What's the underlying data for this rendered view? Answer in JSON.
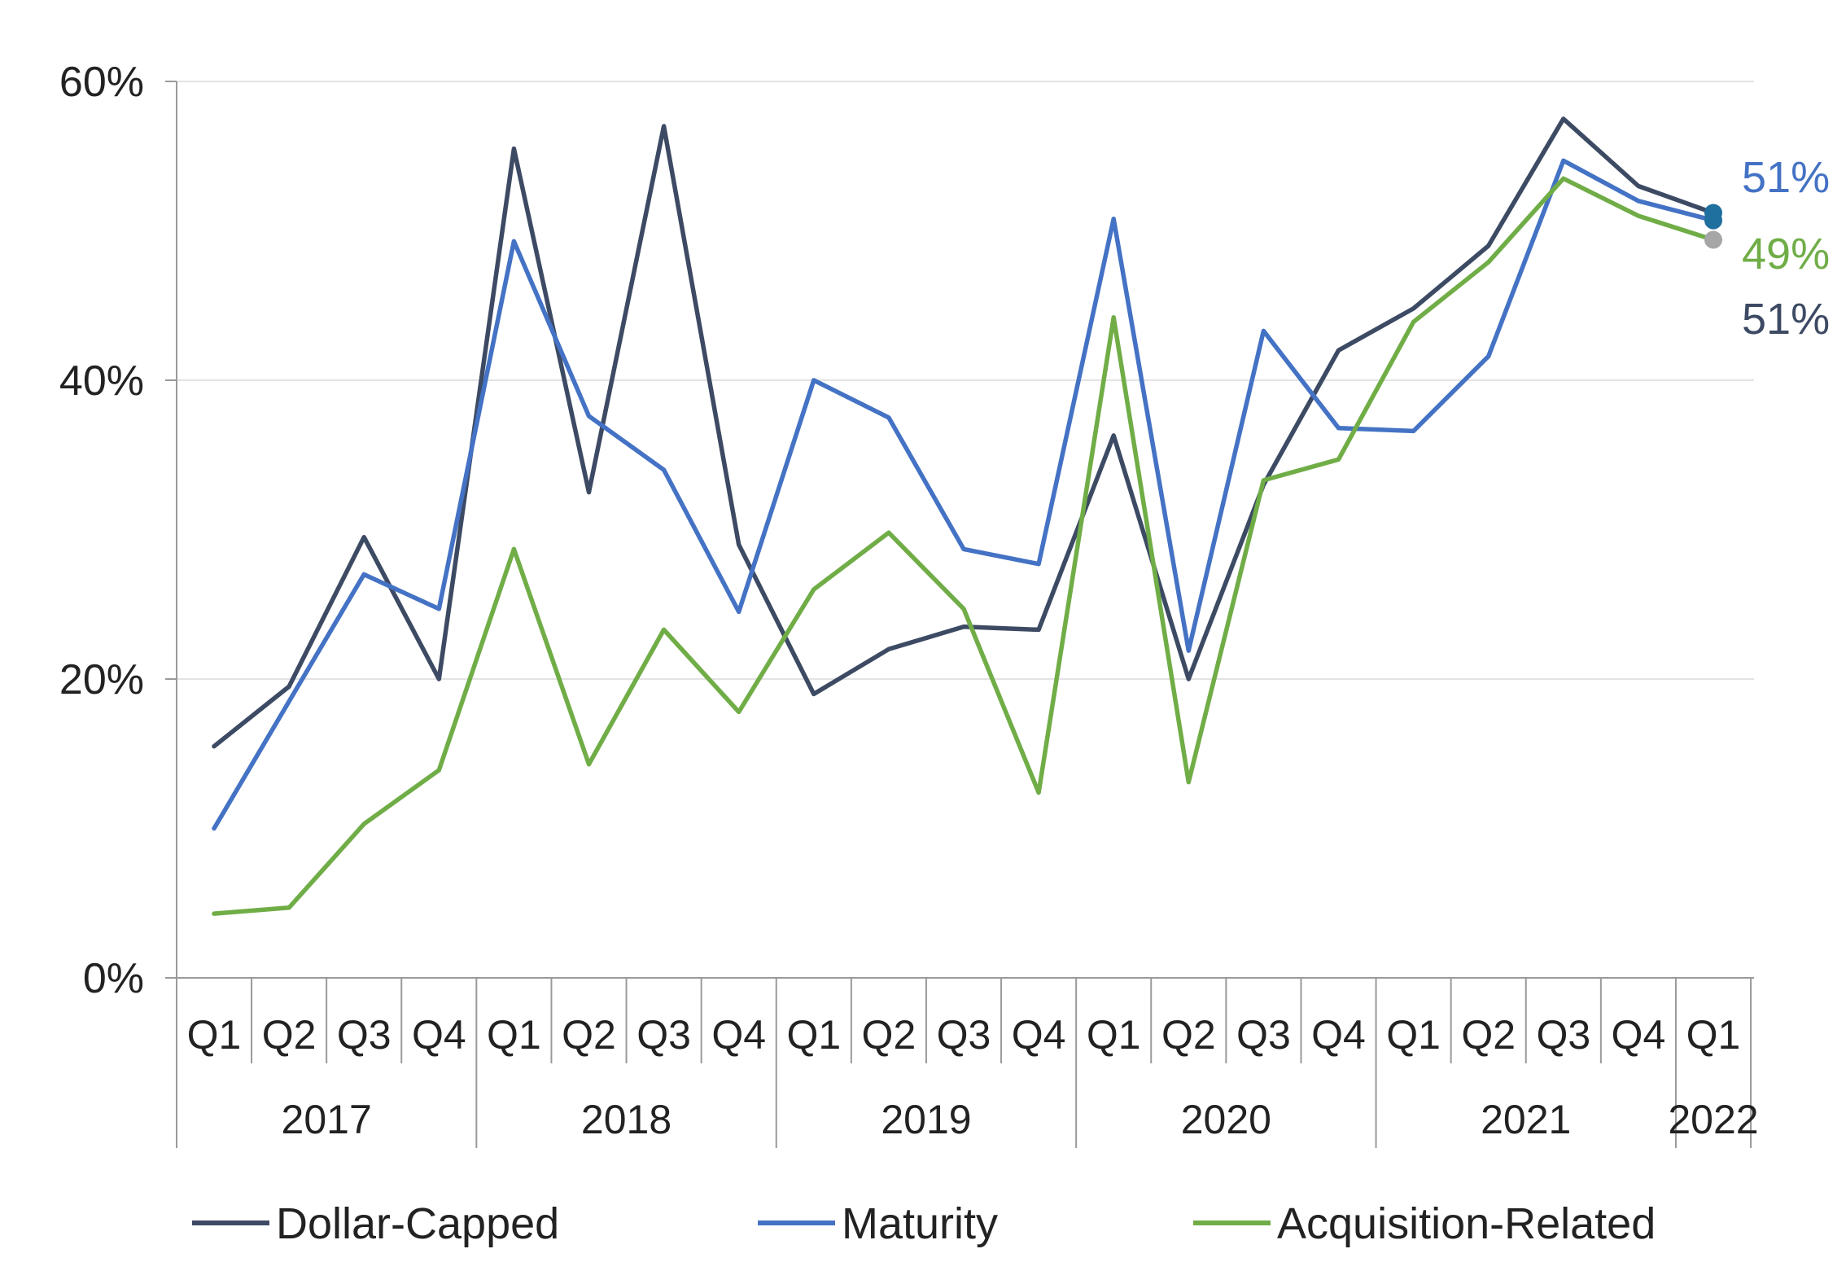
{
  "chart_data": {
    "type": "line",
    "title": "",
    "xlabel": "",
    "ylabel": "",
    "ylim": [
      0,
      60
    ],
    "y_ticks": [
      0,
      20,
      40,
      60
    ],
    "y_tick_labels": [
      "0%",
      "20%",
      "40%",
      "60%"
    ],
    "grid": true,
    "categories": [
      "Q1",
      "Q2",
      "Q3",
      "Q4",
      "Q1",
      "Q2",
      "Q3",
      "Q4",
      "Q1",
      "Q2",
      "Q3",
      "Q4",
      "Q1",
      "Q2",
      "Q3",
      "Q4",
      "Q1",
      "Q2",
      "Q3",
      "Q4",
      "Q1"
    ],
    "groups": [
      {
        "label": "2017",
        "count": 4
      },
      {
        "label": "2018",
        "count": 4
      },
      {
        "label": "2019",
        "count": 4
      },
      {
        "label": "2020",
        "count": 4
      },
      {
        "label": "2021",
        "count": 4
      },
      {
        "label": "2022",
        "count": 1
      }
    ],
    "series": [
      {
        "name": "Dollar-Capped",
        "color": "#3d4a63",
        "marker_color": "#1f6f9f",
        "end_label": "51%",
        "values": [
          15.5,
          19.5,
          29.5,
          20.0,
          55.5,
          32.5,
          57.0,
          29.0,
          19.0,
          22.0,
          23.5,
          23.3,
          36.3,
          20.0,
          33.0,
          42.0,
          44.8,
          49.0,
          57.5,
          53.0,
          51.2
        ]
      },
      {
        "name": "Maturity",
        "color": "#4472c4",
        "marker_color": "#1f6f9f",
        "end_label": "51%",
        "values": [
          10.0,
          18.5,
          27.0,
          24.7,
          49.3,
          37.6,
          34.0,
          24.5,
          40.0,
          37.5,
          28.7,
          27.7,
          50.8,
          21.9,
          43.3,
          36.8,
          36.6,
          41.6,
          54.7,
          52.0,
          50.7
        ]
      },
      {
        "name": "Acquisition-Related",
        "color": "#70ad47",
        "marker_color": "#a6a6a6",
        "end_label": "49%",
        "values": [
          4.3,
          4.7,
          10.3,
          13.9,
          28.7,
          14.3,
          23.3,
          17.8,
          26.0,
          29.8,
          24.7,
          12.4,
          44.2,
          13.1,
          33.3,
          34.7,
          43.9,
          47.9,
          53.5,
          51.0,
          49.4
        ]
      }
    ],
    "legend": {
      "position": "bottom",
      "items": [
        "Dollar-Capped",
        "Maturity",
        "Acquisition-Related"
      ]
    }
  }
}
